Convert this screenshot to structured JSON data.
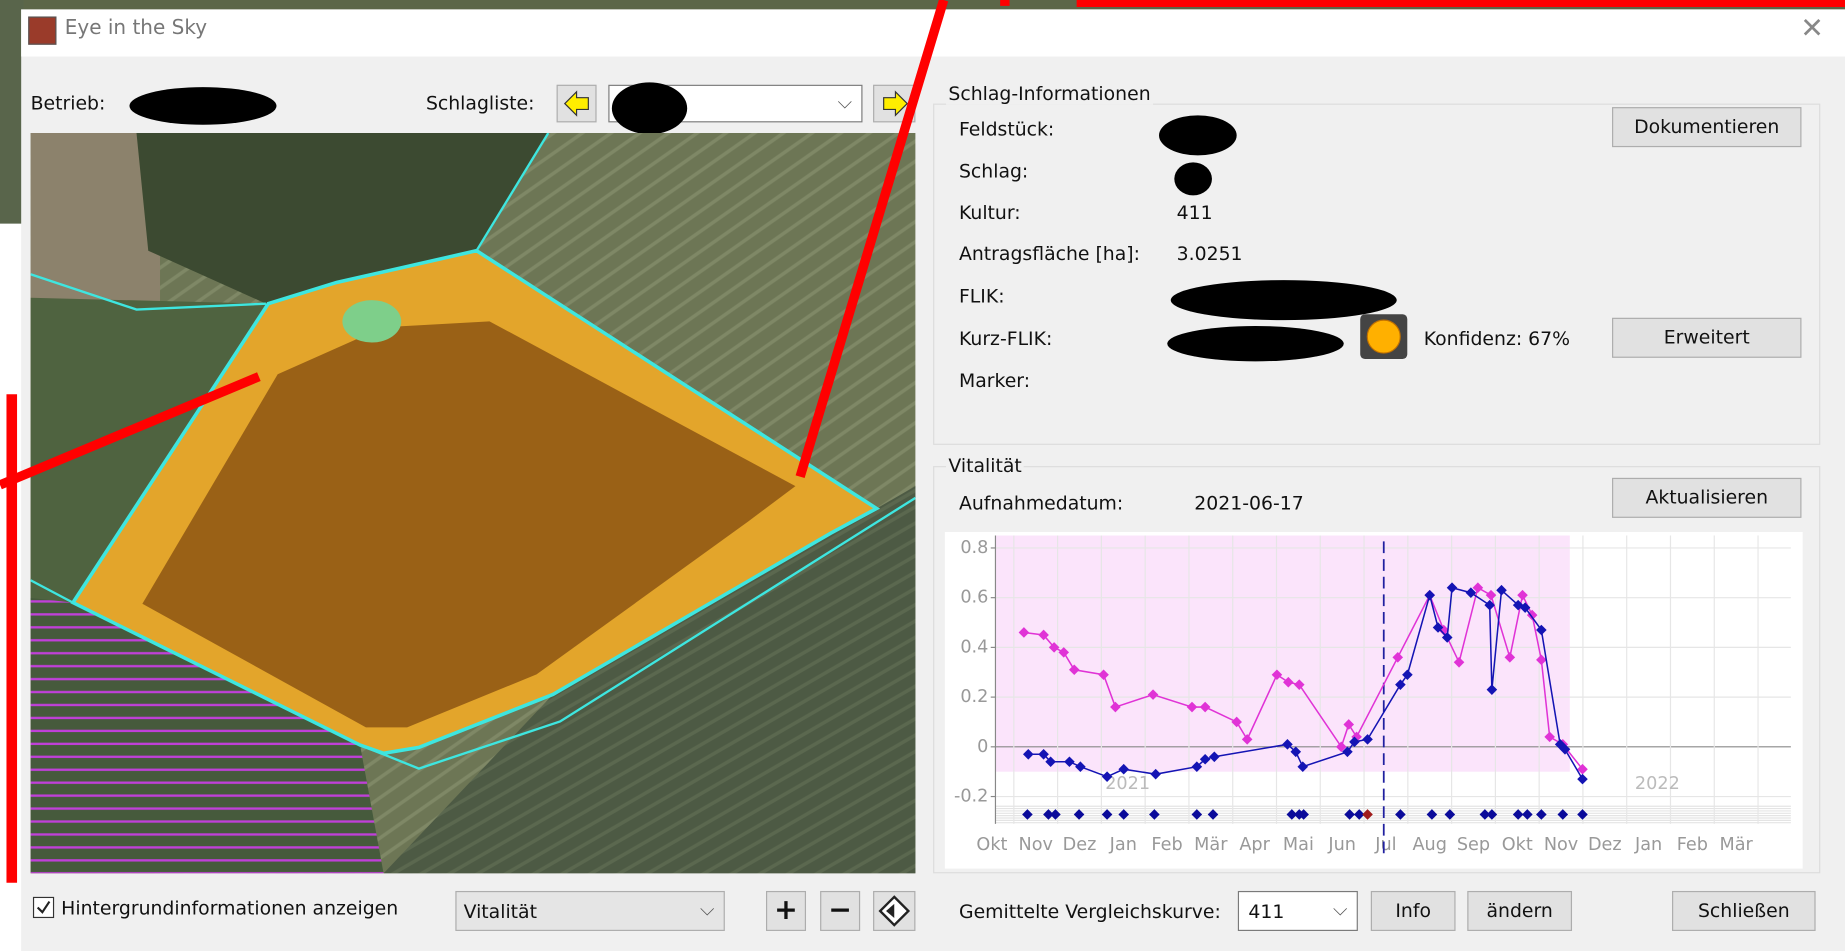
{
  "window": {
    "title": "Eye in the Sky"
  },
  "toolbar": {
    "betrieb_label": "Betrieb:",
    "schlagliste_label": "Schlagliste:"
  },
  "schlag_info": {
    "title": "Schlag-Informationen",
    "feldstueck_label": "Feldstück:",
    "schlag_label": "Schlag:",
    "kultur_label": "Kultur:",
    "kultur": "411",
    "flaeche_label": "Antragsfläche [ha]:",
    "flaeche": "3.0251",
    "flik_label": "FLIK:",
    "kurz_flik_label": "Kurz-FLIK:",
    "confidence": "Konfidenz: 67%",
    "marker_label": "Marker:",
    "document_button": "Dokumentieren",
    "extend_button": "Erweitert"
  },
  "vitality": {
    "title": "Vitalität",
    "date_label": "Aufnahmedatum:",
    "date": "2021-06-17",
    "refresh_button": "Aktualisieren"
  },
  "chart_data": {
    "type": "line",
    "xlim": [
      0.08,
      18.25
    ],
    "ylim": [
      -0.31,
      0.85
    ],
    "yticks": [
      0.8,
      0.6,
      0.4,
      0.2,
      0,
      -0.2
    ],
    "xticks": [
      {
        "value": 0,
        "label": "Okt"
      },
      {
        "value": 1,
        "label": "Nov"
      },
      {
        "value": 2,
        "label": "Dez"
      },
      {
        "value": 3,
        "label": "Jan"
      },
      {
        "value": 4,
        "label": "Feb"
      },
      {
        "value": 5,
        "label": "Mär"
      },
      {
        "value": 6,
        "label": "Apr"
      },
      {
        "value": 7,
        "label": "Mai"
      },
      {
        "value": 8,
        "label": "Jun"
      },
      {
        "value": 9,
        "label": "Jul"
      },
      {
        "value": 10,
        "label": "Aug"
      },
      {
        "value": 11,
        "label": "Sep"
      },
      {
        "value": 12,
        "label": "Okt"
      },
      {
        "value": 13,
        "label": "Nov"
      },
      {
        "value": 14,
        "label": "Dez"
      },
      {
        "value": 15,
        "label": "Jan"
      },
      {
        "value": 16,
        "label": "Feb"
      },
      {
        "value": 17,
        "label": "Mär"
      }
    ],
    "grid": true,
    "shade": {
      "xlim": [
        0.08,
        13.2
      ],
      "ylim": [
        -0.1,
        0.85
      ],
      "color": "#fbe4fb"
    },
    "series": [
      {
        "color": "#e033d6",
        "x": [
          0.73,
          1.18,
          1.42,
          1.64,
          1.88,
          2.55,
          2.82,
          3.68,
          4.57,
          4.87,
          5.59,
          5.83,
          6.51,
          6.77,
          7.02,
          7.98,
          8.15,
          8.33,
          9.27,
          10.0,
          10.32,
          10.67,
          11.1,
          11.4,
          11.83,
          12.12,
          12.34,
          12.55,
          12.74,
          13.04,
          13.49
        ],
        "values": [
          0.46,
          0.45,
          0.4,
          0.38,
          0.31,
          0.29,
          0.16,
          0.21,
          0.16,
          0.16,
          0.1,
          0.03,
          0.29,
          0.26,
          0.25,
          0.0,
          0.09,
          0.04,
          0.36,
          0.61,
          0.47,
          0.34,
          0.64,
          0.61,
          0.36,
          0.61,
          0.53,
          0.35,
          0.04,
          0.01,
          -0.09
        ]
      },
      {
        "color": "#1414b4",
        "x": [
          0.83,
          1.18,
          1.34,
          1.77,
          2.02,
          2.63,
          3.01,
          3.74,
          4.68,
          4.87,
          5.08,
          6.75,
          6.94,
          7.1,
          8.12,
          8.28,
          8.58,
          9.33,
          9.49,
          10.0,
          10.19,
          10.4,
          10.51,
          10.94,
          11.37,
          11.42,
          11.64,
          12.02,
          12.18,
          12.55,
          12.98,
          13.09,
          13.49
        ],
        "values": [
          -0.03,
          -0.03,
          -0.06,
          -0.06,
          -0.08,
          -0.12,
          -0.09,
          -0.11,
          -0.08,
          -0.05,
          -0.04,
          0.01,
          -0.02,
          -0.08,
          -0.02,
          0.02,
          0.03,
          0.25,
          0.29,
          0.61,
          0.48,
          0.44,
          0.64,
          0.62,
          0.57,
          0.23,
          0.63,
          0.57,
          0.56,
          0.47,
          0.01,
          -0.01,
          -0.13
        ]
      }
    ],
    "acquisitions": {
      "color": "#0a0a9a",
      "x": [
        0.81,
        1.29,
        1.45,
        1.99,
        2.63,
        3.01,
        3.71,
        4.68,
        5.05,
        6.85,
        7.02,
        7.12,
        8.17,
        8.39,
        9.33,
        10.05,
        10.46,
        11.26,
        11.42,
        12.02,
        12.23,
        12.55,
        13.04,
        13.49
      ]
    },
    "selected_acquisition": {
      "x": 8.58,
      "color": "#a01c1c"
    },
    "selected_date_x": 8.95,
    "annotations": [
      {
        "text": "2021",
        "x": 3.1,
        "y": -0.15
      },
      {
        "text": "2022",
        "x": 15.2,
        "y": -0.15
      }
    ]
  },
  "footer": {
    "background_checkbox": "Hintergrundinformationen anzeigen",
    "layer_select": "Vitalität",
    "comparison_label": "Gemittelte Vergleichskurve:",
    "comparison_value": "411",
    "info_button": "Info",
    "change_button": "ändern",
    "close_button": "Schließen"
  }
}
